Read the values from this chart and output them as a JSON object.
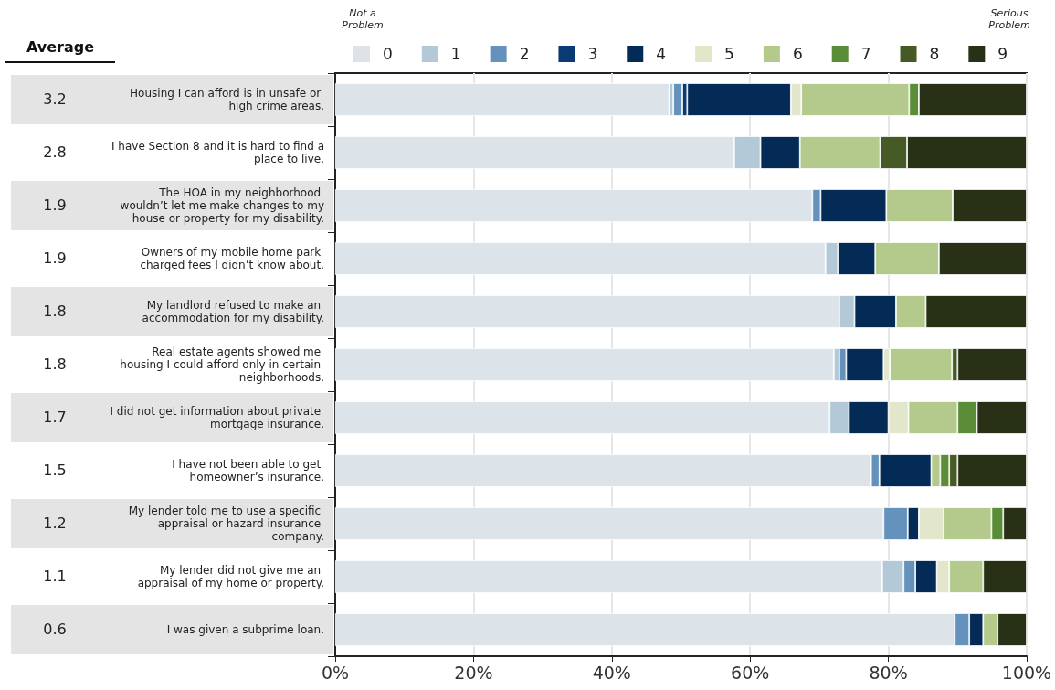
{
  "chart_data": {
    "type": "bar",
    "orientation": "horizontal",
    "stacked": true,
    "categories": [
      "Housing I can afford is in unsafe or high crime areas.",
      "I have Section 8 and it is hard to find a place to live.",
      "The HOA in my neighborhood wouldn’t let me make changes to my house or property for my disability.",
      "Owners of my mobile home park charged fees I didn’t know about.",
      "My landlord refused to make an accommodation for my disability.",
      "Real estate agents showed me housing I could afford only in certain neighborhoods.",
      "I did not get information about private mortgage insurance.",
      "I have not been able to get homeowner’s insurance.",
      "My lender told me to use a specific appraisal or hazard insurance company.",
      "My lender did not give me an appraisal of my home or property.",
      "I was given a subprime loan."
    ],
    "series": [
      {
        "name": "0",
        "color": "#dce4ea",
        "values": [
          48.3,
          57.7,
          69.0,
          70.9,
          72.9,
          72.1,
          71.5,
          77.5,
          79.3,
          79.1,
          89.6
        ]
      },
      {
        "name": "1",
        "color": "#b3c9d8",
        "values": [
          0.6,
          3.8,
          null,
          1.8,
          2.2,
          0.8,
          2.8,
          null,
          null,
          3.1,
          null
        ]
      },
      {
        "name": "2",
        "color": "#6592bc",
        "values": [
          1.3,
          null,
          1.2,
          null,
          null,
          1.0,
          null,
          1.2,
          3.5,
          1.7,
          2.1
        ]
      },
      {
        "name": "3",
        "color": "#0a3a74",
        "values": [
          0.7,
          null,
          null,
          null,
          null,
          null,
          null,
          null,
          null,
          null,
          null
        ]
      },
      {
        "name": "4",
        "color": "#032b55",
        "values": [
          15.0,
          5.7,
          9.5,
          5.4,
          6.0,
          5.4,
          5.7,
          7.5,
          1.6,
          3.1,
          2.0
        ]
      },
      {
        "name": "5",
        "color": "#e2e7cb",
        "values": [
          1.5,
          null,
          null,
          null,
          null,
          0.9,
          2.9,
          null,
          3.6,
          1.8,
          null
        ]
      },
      {
        "name": "6",
        "color": "#b3ca8c",
        "values": [
          15.6,
          11.6,
          9.6,
          9.2,
          4.3,
          9.0,
          7.1,
          1.3,
          6.9,
          4.9,
          2.1
        ]
      },
      {
        "name": "7",
        "color": "#5b8c37",
        "values": [
          1.4,
          null,
          null,
          null,
          null,
          null,
          2.8,
          1.3,
          1.7,
          null,
          null
        ]
      },
      {
        "name": "8",
        "color": "#455a24",
        "values": [
          null,
          3.9,
          null,
          null,
          null,
          0.8,
          null,
          1.2,
          null,
          null,
          null
        ]
      },
      {
        "name": "9",
        "color": "#283015",
        "values": [
          15.6,
          17.3,
          10.7,
          12.7,
          14.6,
          10.0,
          7.2,
          10.0,
          3.4,
          6.3,
          4.2
        ]
      }
    ],
    "xlim": [
      0,
      100
    ],
    "xticks": [
      {
        "value": 0,
        "label": "0%"
      },
      {
        "value": 20,
        "label": "20%"
      },
      {
        "value": 40,
        "label": "40%"
      },
      {
        "value": 60,
        "label": "60%"
      },
      {
        "value": 80,
        "label": "80%"
      },
      {
        "value": 100,
        "label": "100%"
      }
    ],
    "grid": "x",
    "legend": "top",
    "annotations": [
      "Not a Problem",
      "Serious Problem",
      "Average",
      "3.2",
      "2.8",
      "1.9",
      "1.9",
      "1.8",
      "1.8",
      "1.7",
      "1.5",
      "1.2",
      "1.1",
      "0.6"
    ]
  }
}
